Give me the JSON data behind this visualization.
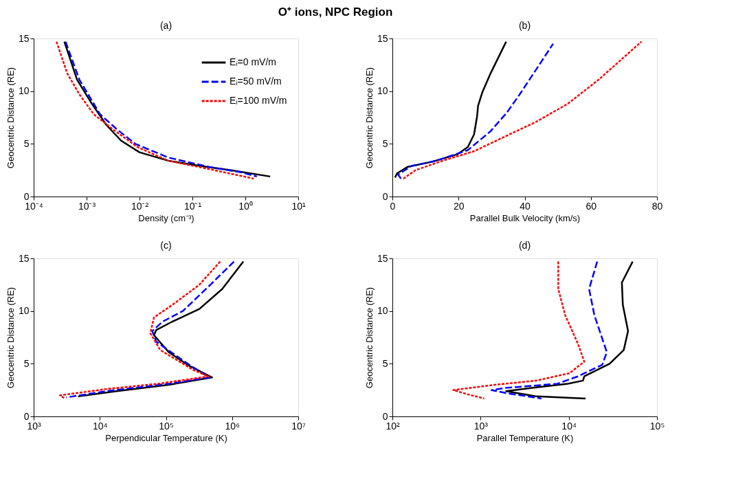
{
  "chart_data": [
    {
      "type": "line",
      "title": "(a)",
      "annotations": [
        "O⁺ ions, NPC Region"
      ],
      "xlabel": "Density (cm⁻³)",
      "ylabel": "Geocentric Distance (RE)",
      "log": "x",
      "grid": false,
      "legend": "top right",
      "xlim": [
        0.0001,
        10
      ],
      "xticks": [
        {
          "value": 0.0001,
          "label": "10⁻⁴"
        },
        {
          "value": 0.001,
          "label": "10⁻³"
        },
        {
          "value": 0.01,
          "label": "10⁻²"
        },
        {
          "value": 0.1,
          "label": "10⁻¹"
        },
        {
          "value": 1,
          "label": "10⁰"
        },
        {
          "value": 10,
          "label": "10¹"
        }
      ],
      "ylim": [
        0,
        15
      ],
      "yticks": [
        0,
        5,
        10,
        15
      ],
      "series": [
        {
          "name": "Eᵢ=0 mV/m",
          "color": "#000000",
          "line_style": "solid",
          "x": [
            0.00038,
            0.00066,
            0.00126,
            0.00236,
            0.0045,
            0.01,
            0.035,
            0.14,
            0.54,
            2.95
          ],
          "values": [
            14.7,
            11.1,
            8.8,
            6.8,
            5.3,
            4.2,
            3.4,
            2.9,
            2.5,
            1.9
          ]
        },
        {
          "name": "Eᵢ=50 mV/m",
          "color": "#0000ff",
          "line_style": "dashed",
          "x": [
            0.0004,
            0.00073,
            0.0018,
            0.0037,
            0.0083,
            0.035,
            0.21,
            0.83,
            1.65
          ],
          "values": [
            14.7,
            11.1,
            7.8,
            6.4,
            5.0,
            3.7,
            2.8,
            2.3,
            1.9
          ]
        },
        {
          "name": "Eᵢ=100 mV/m",
          "color": "#ff0000",
          "line_style": "dotted",
          "x": [
            0.00027,
            0.00043,
            0.00073,
            0.00137,
            0.0031,
            0.0091,
            0.035,
            0.21,
            1.44
          ],
          "values": [
            14.7,
            11.7,
            9.7,
            7.8,
            6.4,
            4.7,
            3.4,
            2.6,
            1.7
          ]
        }
      ]
    },
    {
      "type": "line",
      "title": "(b)",
      "xlabel": "Parallel Bulk Velocity (km/s)",
      "ylabel": "Geocentric Distance (RE)",
      "grid": false,
      "xlim": [
        0,
        80
      ],
      "xticks": [
        0,
        20,
        40,
        60,
        80
      ],
      "ylim": [
        0,
        15
      ],
      "yticks": [
        0,
        5,
        10,
        15
      ],
      "series": [
        {
          "color": "#000000",
          "line_style": "solid",
          "x": [
            0.8,
            1.4,
            4.5,
            12,
            19.6,
            22.8,
            24.7,
            25.6,
            25.9,
            27.2,
            29.7,
            34.4
          ],
          "values": [
            1.8,
            2.2,
            2.8,
            3.3,
            4.0,
            4.7,
            5.9,
            7.6,
            8.6,
            9.9,
            11.7,
            14.7
          ]
        },
        {
          "color": "#0000ff",
          "line_style": "dashed",
          "x": [
            2.6,
            1.7,
            5.8,
            13.3,
            22.8,
            29.7,
            34.7,
            38.5,
            42.3,
            48.6
          ],
          "values": [
            1.7,
            2.1,
            2.9,
            3.4,
            4.4,
            6.2,
            8.0,
            9.7,
            11.5,
            14.5
          ]
        },
        {
          "color": "#ff0000",
          "line_style": "dotted",
          "x": [
            3.3,
            7.0,
            15.2,
            24.7,
            34.1,
            43.5,
            53,
            62.4,
            75.3
          ],
          "values": [
            1.7,
            2.5,
            3.4,
            4.3,
            5.7,
            7.1,
            8.8,
            11.1,
            14.7
          ]
        }
      ]
    },
    {
      "type": "line",
      "title": "(c)",
      "xlabel": "Perpendicular Temperature (K)",
      "ylabel": "Geocentric Distance (RE)",
      "log": "x",
      "grid": false,
      "xlim": [
        1000,
        10000000
      ],
      "xticks": [
        {
          "value": 1000,
          "label": "10³"
        },
        {
          "value": 10000,
          "label": "10⁴"
        },
        {
          "value": 100000,
          "label": "10⁵"
        },
        {
          "value": 1000000,
          "label": "10⁶"
        },
        {
          "value": 10000000,
          "label": "10⁷"
        }
      ],
      "ylim": [
        0,
        15
      ],
      "yticks": [
        0,
        5,
        10,
        15
      ],
      "series": [
        {
          "color": "#000000",
          "line_style": "solid",
          "x": [
            1480000,
            710000,
            320000,
            125000,
            71000,
            66000,
            110000,
            225000,
            500000,
            110000,
            18000,
            4700
          ],
          "values": [
            14.7,
            12.1,
            10.2,
            9.0,
            8.2,
            7.7,
            6.1,
            4.8,
            3.7,
            3.0,
            2.4,
            1.9
          ]
        },
        {
          "color": "#0000ff",
          "line_style": "dashed",
          "x": [
            1070000,
            470000,
            180000,
            89000,
            62000,
            71000,
            225000,
            450000,
            110000,
            12600,
            3100
          ],
          "values": [
            14.7,
            12.5,
            10.0,
            9.0,
            8.1,
            7.1,
            4.9,
            3.7,
            3.1,
            2.4,
            1.8
          ]
        },
        {
          "color": "#ff0000",
          "line_style": "dotted",
          "x": [
            660000,
            320000,
            126000,
            66000,
            58000,
            82000,
            260000,
            440000,
            76000,
            12600,
            2500,
            2950
          ],
          "values": [
            14.7,
            12.5,
            10.6,
            9.4,
            7.9,
            6.3,
            4.4,
            3.8,
            3.1,
            2.6,
            2.0,
            1.7
          ]
        }
      ]
    },
    {
      "type": "line",
      "title": "(d)",
      "xlabel": "Parallel Temperature (K)",
      "ylabel": "Geocentric Distance (RE)",
      "log": "x",
      "grid": false,
      "xlim": [
        100,
        100000
      ],
      "xticks": [
        {
          "value": 100,
          "label": "10²"
        },
        {
          "value": 1000,
          "label": "10³"
        },
        {
          "value": 10000,
          "label": "10⁴"
        },
        {
          "value": 100000,
          "label": "10⁵"
        }
      ],
      "ylim": [
        0,
        15
      ],
      "yticks": [
        0,
        5,
        10,
        15
      ],
      "series": [
        {
          "color": "#000000",
          "line_style": "solid",
          "x": [
            53000,
            40000,
            41000,
            47000,
            42000,
            29000,
            15000,
            14500,
            9700,
            3800,
            1950,
            4300,
            15500
          ],
          "values": [
            14.7,
            12.7,
            10.6,
            8.1,
            6.3,
            5.0,
            3.8,
            3.4,
            3.1,
            2.7,
            2.4,
            1.9,
            1.7
          ]
        },
        {
          "color": "#0000ff",
          "line_style": "dashed",
          "x": [
            21000,
            17000,
            19500,
            27000,
            24000,
            12700,
            7400,
            1900,
            1330,
            2000,
            4900
          ],
          "values": [
            14.7,
            12.1,
            9.6,
            6.1,
            4.9,
            3.8,
            3.1,
            2.7,
            2.5,
            2.2,
            1.7
          ]
        },
        {
          "color": "#ff0000",
          "line_style": "dotted",
          "x": [
            7600,
            7600,
            9100,
            12700,
            15000,
            10200,
            4300,
            1450,
            490,
            710,
            1100
          ],
          "values": [
            14.7,
            12.1,
            9.6,
            6.9,
            5.2,
            4.1,
            3.4,
            3.0,
            2.5,
            2.1,
            1.7
          ]
        }
      ]
    }
  ]
}
